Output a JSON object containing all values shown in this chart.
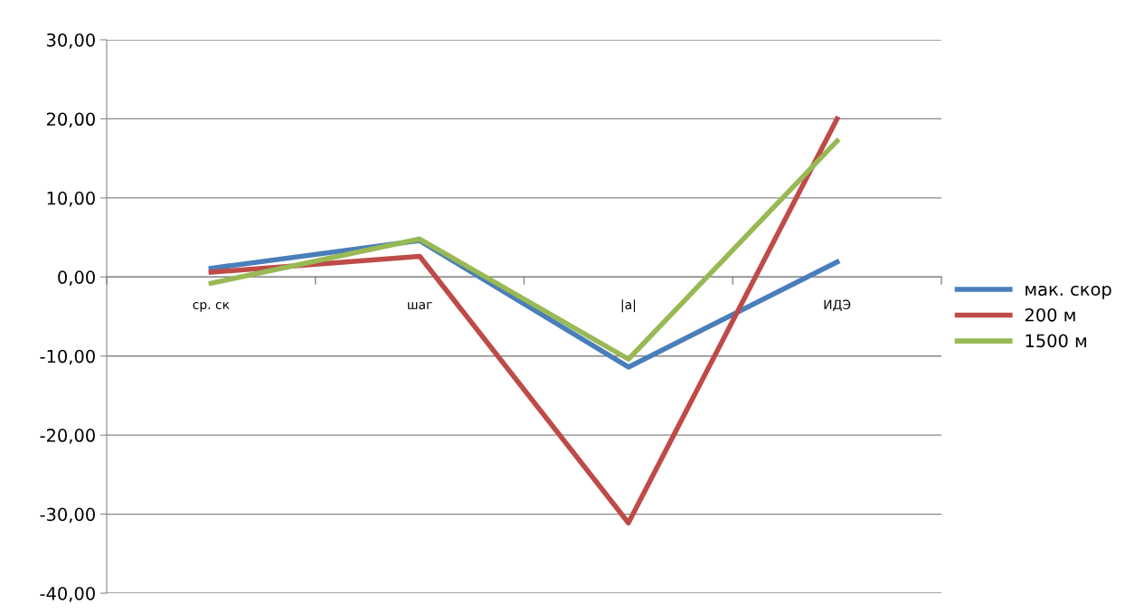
{
  "chart_data": {
    "type": "line",
    "categories": [
      "ср. ск",
      "шаг",
      "|a|",
      "ИДЭ"
    ],
    "series": [
      {
        "name": "мак. скор",
        "color": "#4a7ebb",
        "values": [
          1.1,
          4.6,
          -11.4,
          1.9
        ]
      },
      {
        "name": "200 м",
        "color": "#be4b48",
        "values": [
          0.6,
          2.6,
          -31.1,
          20.0
        ]
      },
      {
        "name": "1500 м",
        "color": "#98b954",
        "values": [
          -0.8,
          4.8,
          -10.4,
          17.2
        ]
      }
    ],
    "ylim": [
      -40,
      30
    ],
    "yticks": [
      {
        "value": -40,
        "label": "-40,00"
      },
      {
        "value": -30,
        "label": "-30,00"
      },
      {
        "value": -20,
        "label": "-20,00"
      },
      {
        "value": -10,
        "label": "-10,00"
      },
      {
        "value": 0,
        "label": "0,00"
      },
      {
        "value": 10,
        "label": "10,00"
      },
      {
        "value": 20,
        "label": "20,00"
      },
      {
        "value": 30,
        "label": "30,00"
      }
    ],
    "grid": "y",
    "legend": "right",
    "marker": "none",
    "line_style": "solid"
  }
}
